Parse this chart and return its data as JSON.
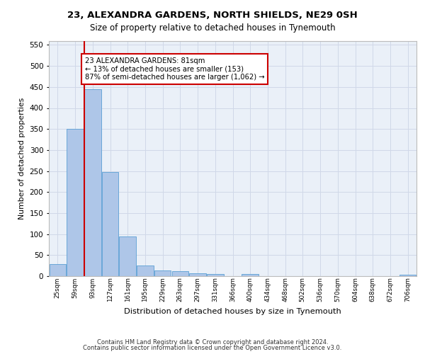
{
  "title1": "23, ALEXANDRA GARDENS, NORTH SHIELDS, NE29 0SH",
  "title2": "Size of property relative to detached houses in Tynemouth",
  "xlabel": "Distribution of detached houses by size in Tynemouth",
  "ylabel": "Number of detached properties",
  "bar_labels": [
    "25sqm",
    "59sqm",
    "93sqm",
    "127sqm",
    "161sqm",
    "195sqm",
    "229sqm",
    "263sqm",
    "297sqm",
    "331sqm",
    "366sqm",
    "400sqm",
    "434sqm",
    "468sqm",
    "502sqm",
    "536sqm",
    "570sqm",
    "604sqm",
    "638sqm",
    "672sqm",
    "706sqm"
  ],
  "bar_values": [
    28,
    350,
    445,
    248,
    95,
    25,
    14,
    11,
    7,
    5,
    0,
    5,
    0,
    0,
    0,
    0,
    0,
    0,
    0,
    0,
    4
  ],
  "bar_color": "#aec6e8",
  "bar_edge_color": "#5a9fd4",
  "ylim": [
    0,
    560
  ],
  "yticks": [
    0,
    50,
    100,
    150,
    200,
    250,
    300,
    350,
    400,
    450,
    500,
    550
  ],
  "vline_color": "#cc0000",
  "annotation_text": "23 ALEXANDRA GARDENS: 81sqm\n← 13% of detached houses are smaller (153)\n87% of semi-detached houses are larger (1,062) →",
  "annotation_box_color": "#ffffff",
  "annotation_box_edge_color": "#cc0000",
  "footer1": "Contains HM Land Registry data © Crown copyright and database right 2024.",
  "footer2": "Contains public sector information licensed under the Open Government Licence v3.0.",
  "grid_color": "#d0d8e8",
  "background_color": "#eaf0f8"
}
